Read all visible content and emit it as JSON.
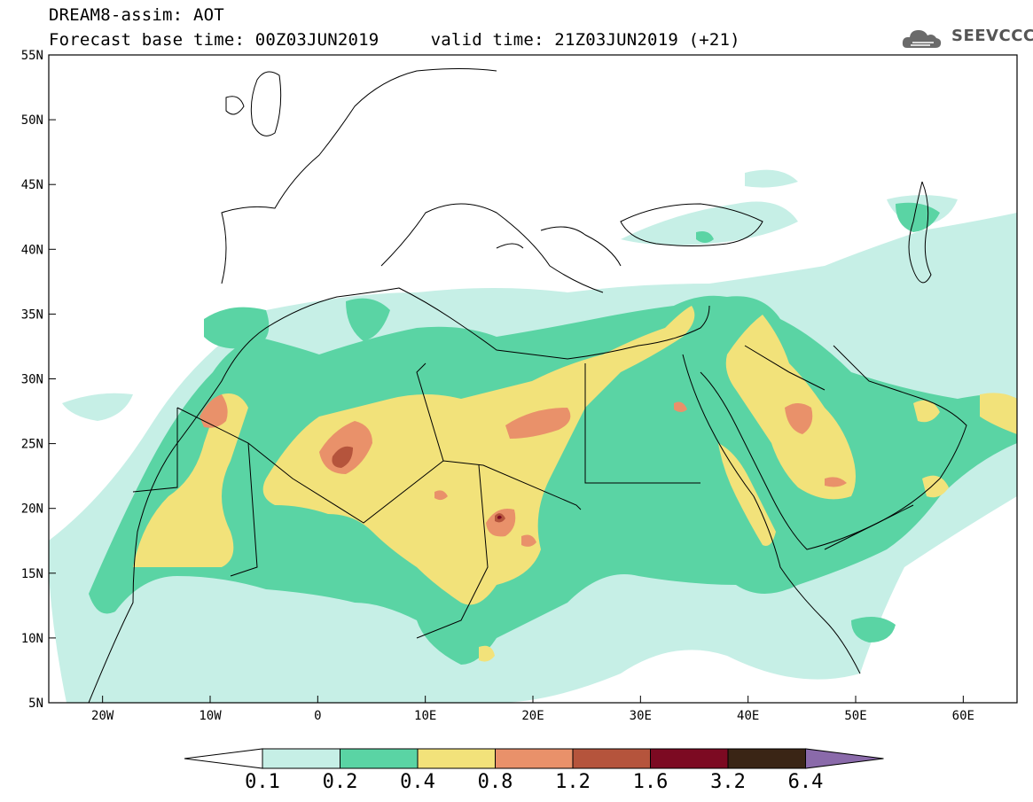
{
  "title": {
    "line1": "DREAM8-assim: AOT",
    "line2": "Forecast base time: 00Z03JUN2019     valid time: 21Z03JUN2019 (+21)"
  },
  "logo": {
    "text": "SEEVCCC",
    "icon": "cloud-icon"
  },
  "map": {
    "projection": "lat-lon",
    "lon_range": [
      -25,
      65
    ],
    "lat_range": [
      5,
      55
    ],
    "lon_ticks": [
      "20W",
      "10W",
      "0",
      "10E",
      "20E",
      "30E",
      "40E",
      "50E",
      "60E"
    ],
    "lat_ticks": [
      "55N",
      "50N",
      "45N",
      "40N",
      "35N",
      "30N",
      "25N",
      "20N",
      "15N",
      "10N",
      "5N"
    ]
  },
  "colorbar": {
    "levels": [
      "0.1",
      "0.2",
      "0.4",
      "0.8",
      "1.2",
      "1.6",
      "3.2",
      "6.4"
    ],
    "colors": [
      "#c6efe6",
      "#5ad4a4",
      "#f2e27a",
      "#e9916a",
      "#b5543c",
      "#7c0a22",
      "#3a2515",
      "#8a6aaa"
    ]
  }
}
